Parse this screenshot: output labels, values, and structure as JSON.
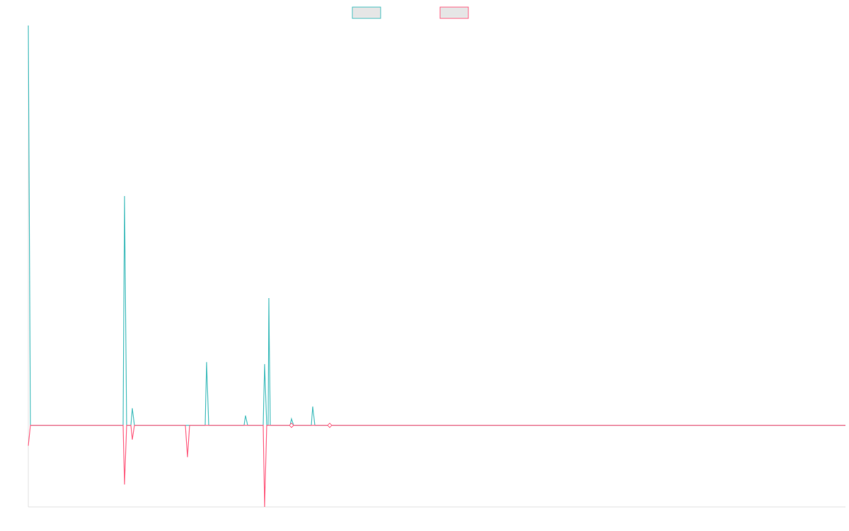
{
  "colors": {
    "series_a": "#4bc0c0",
    "series_b": "#ff6384",
    "legend_fill": "#e6e6e6",
    "axis": "#e0e0e0"
  },
  "chart_data": {
    "type": "line",
    "title": "",
    "xlabel": "",
    "ylabel": "",
    "grid": false,
    "legend_placement": "top-center",
    "x": [
      0,
      1,
      2,
      3,
      4,
      5,
      6,
      7,
      8,
      9,
      10,
      11,
      12,
      13,
      14,
      15,
      16,
      17,
      18,
      19,
      20,
      21,
      22,
      23,
      24,
      25,
      26,
      27,
      28,
      29,
      30,
      31,
      32,
      33,
      34,
      35,
      36,
      37,
      38,
      39,
      40,
      41,
      42,
      43,
      44,
      45,
      46,
      47,
      48,
      49,
      50,
      51,
      52,
      53,
      54,
      55,
      56,
      57,
      58,
      59,
      60,
      61,
      62,
      63,
      64,
      65,
      66,
      67,
      68,
      69,
      70,
      71,
      72,
      73,
      74,
      75,
      76,
      77,
      78,
      79,
      80,
      81,
      82,
      83,
      84,
      85,
      86,
      87,
      88,
      89,
      90,
      91,
      92,
      93,
      94,
      95,
      96,
      97,
      98,
      99,
      100,
      101,
      102,
      103,
      104,
      105,
      106,
      107,
      108,
      109,
      110,
      111,
      112,
      113,
      114,
      115,
      116,
      117,
      118,
      119,
      120,
      121,
      122,
      123,
      124,
      125,
      126,
      127,
      128,
      129,
      130,
      131,
      132,
      133,
      134,
      135,
      136,
      137,
      138,
      139,
      140,
      141,
      142,
      143,
      144,
      145,
      146,
      147,
      148,
      149,
      150,
      151,
      152,
      153,
      154,
      155,
      156,
      157,
      158,
      159,
      160,
      161,
      162,
      163,
      164,
      165,
      166,
      167,
      168,
      169,
      170,
      171,
      172,
      173,
      174,
      175,
      176,
      177,
      178,
      179,
      180,
      181,
      182,
      183,
      184,
      185,
      186,
      187,
      188,
      189,
      190,
      191,
      192,
      193,
      194,
      195,
      196,
      197,
      198,
      199,
      200,
      201,
      202,
      203,
      204,
      205,
      206,
      207,
      208,
      209,
      210,
      211,
      212,
      213,
      214,
      215,
      216,
      217,
      218,
      219,
      220,
      221,
      222,
      223,
      224,
      225,
      226,
      227,
      228,
      229,
      230,
      231,
      232,
      233,
      234,
      235,
      236,
      237,
      238,
      239,
      240,
      241,
      242,
      243,
      244,
      245,
      246,
      247,
      248,
      249,
      250,
      251,
      252,
      253,
      254,
      255,
      256,
      257,
      258,
      259,
      260,
      261,
      262,
      263,
      264,
      265,
      266,
      267,
      268,
      269,
      270,
      271,
      272,
      273,
      274,
      275,
      276,
      277,
      278,
      279,
      280,
      281,
      282,
      283,
      284,
      285,
      286,
      287,
      288,
      289,
      290,
      291,
      292,
      293,
      294,
      295,
      296,
      297,
      298,
      299,
      300,
      301,
      302,
      303,
      304,
      305,
      306,
      307,
      308,
      309,
      310,
      311,
      312,
      313,
      314,
      315,
      316,
      317,
      318,
      319,
      320,
      321,
      322,
      323,
      324,
      325,
      326,
      327,
      328,
      329,
      330,
      331,
      332,
      333,
      334,
      335,
      336,
      337,
      338,
      339,
      340,
      341,
      342,
      343,
      344,
      345,
      346,
      347,
      348,
      349,
      350,
      351,
      352,
      353,
      354,
      355,
      356,
      357,
      358,
      359,
      360,
      361,
      362,
      363,
      364,
      365,
      366,
      367,
      368,
      369,
      370,
      371,
      372,
      373,
      374,
      375,
      376,
      377,
      378,
      379,
      380,
      381,
      382,
      383,
      384,
      385,
      386,
      387,
      388,
      389,
      390,
      391,
      392,
      393,
      394,
      395,
      396,
      397,
      398,
      399,
      400,
      401,
      402,
      403,
      404,
      405,
      406,
      407,
      408,
      409,
      410,
      411,
      412,
      413,
      414,
      415,
      416,
      417,
      418,
      419,
      420,
      421,
      422,
      423,
      424,
      425,
      426,
      427,
      428,
      429,
      430,
      431,
      432,
      433,
      434,
      435,
      436,
      437,
      438,
      439,
      440,
      441,
      442,
      443,
      444,
      445,
      446,
      447,
      448,
      449,
      450,
      451,
      452,
      453,
      454,
      455,
      456,
      457,
      458,
      459,
      460,
      461,
      462,
      463,
      464,
      465,
      466,
      467,
      468,
      469,
      470,
      471,
      472,
      473,
      474,
      475,
      476,
      477,
      478,
      479,
      480,
      481,
      482,
      483,
      484,
      485,
      486,
      487,
      488,
      489,
      490,
      491,
      492,
      493,
      494,
      495,
      496,
      497,
      498,
      499,
      500,
      501,
      502,
      503,
      504,
      505,
      506,
      507,
      508,
      509,
      510,
      511,
      512,
      513,
      514,
      515,
      516,
      517,
      518,
      519,
      520,
      521,
      522,
      523,
      524,
      525,
      526,
      527,
      528,
      529,
      530,
      531,
      532,
      533,
      534,
      535,
      536,
      537,
      538,
      539,
      540,
      541,
      542,
      543,
      544,
      545,
      546,
      547,
      548,
      549,
      550,
      551,
      552,
      553,
      554,
      555,
      556,
      557,
      558,
      559,
      560,
      561,
      562,
      563,
      564,
      565,
      566,
      567,
      568,
      569,
      570,
      571,
      572,
      573,
      574,
      575,
      576,
      577,
      578,
      579,
      580,
      581,
      582,
      583,
      584,
      585,
      586,
      587,
      588,
      589,
      590,
      591,
      592,
      593,
      594,
      595,
      596,
      597,
      598,
      599,
      600,
      601,
      602,
      603,
      604,
      605,
      606,
      607,
      608,
      609,
      610,
      611,
      612,
      613,
      614,
      615,
      616,
      617,
      618,
      619,
      620,
      621,
      622,
      623,
      624,
      625,
      626,
      627,
      628,
      629,
      630,
      631,
      632,
      633,
      634,
      635,
      636,
      637,
      638,
      639,
      640,
      641,
      642,
      643,
      644,
      645,
      646,
      647,
      648,
      649,
      650,
      651,
      652,
      653,
      654,
      655,
      656,
      657,
      658,
      659,
      660,
      661,
      662,
      663,
      664,
      665,
      666,
      667,
      668,
      669,
      670,
      671,
      672,
      673,
      674,
      675,
      676,
      677,
      678,
      679,
      680,
      681,
      682,
      683,
      684,
      685,
      686,
      687,
      688,
      689,
      690,
      691,
      692,
      693,
      694,
      695,
      696,
      697,
      698,
      699,
      700,
      701,
      702,
      703,
      704,
      705,
      706,
      707,
      708,
      709,
      710,
      711,
      712,
      713,
      714,
      715,
      716,
      717,
      718,
      719,
      720,
      721,
      722,
      723,
      724,
      725,
      726,
      727,
      728,
      729,
      730,
      731,
      732,
      733,
      734,
      735,
      736,
      737,
      738,
      739,
      740,
      741,
      742,
      743,
      744,
      745,
      746,
      747,
      748,
      749,
      750,
      751,
      752,
      753,
      754,
      755,
      756,
      757,
      758,
      759,
      760,
      761,
      762,
      763,
      764,
      765,
      766,
      767,
      768,
      769,
      770,
      771,
      772,
      773,
      774,
      775,
      776,
      777,
      778,
      779,
      780,
      781,
      782,
      783,
      784,
      785,
      786,
      787,
      788,
      789,
      790,
      791,
      792,
      793,
      794,
      795,
      796,
      797,
      798,
      799,
      800,
      801,
      802,
      803,
      804,
      805,
      806,
      807,
      808,
      809,
      810,
      811,
      812,
      813,
      814,
      815,
      816,
      817,
      818,
      819,
      820,
      821,
      822,
      823,
      824,
      825,
      826,
      827,
      828,
      829,
      830,
      831,
      832,
      833,
      834,
      835,
      836,
      837,
      838,
      839,
      840,
      841,
      842,
      843,
      844,
      845,
      846,
      847,
      848,
      849,
      850,
      851,
      852,
      853,
      854,
      855,
      856,
      857,
      858,
      859,
      860,
      861,
      862,
      863,
      864,
      865,
      866,
      867,
      868,
      869,
      870,
      871,
      872,
      873,
      874,
      875,
      876,
      877,
      878,
      879,
      880,
      881,
      882,
      883,
      884,
      885,
      886,
      887,
      888,
      889,
      890,
      891,
      892,
      893,
      894,
      895,
      896,
      897,
      898,
      899,
      900,
      901,
      902,
      903,
      904,
      905,
      906,
      907,
      908,
      909,
      910,
      911,
      912,
      913,
      914,
      915,
      916,
      917,
      918,
      919,
      920,
      921,
      922,
      923,
      924,
      925,
      926,
      927,
      928,
      929,
      930,
      931,
      932,
      933,
      934,
      935,
      936,
      937,
      938,
      939,
      940,
      941,
      942,
      943,
      944,
      945,
      946,
      947,
      948,
      949,
      950,
      951,
      952,
      953,
      954,
      955,
      956,
      957,
      958,
      959,
      960,
      961,
      962,
      963,
      964,
      965,
      966,
      967,
      968,
      969,
      970,
      971,
      972,
      973,
      974,
      975,
      976,
      977,
      978,
      979,
      980,
      981,
      982,
      983,
      984,
      985,
      986,
      987,
      988,
      989,
      990,
      991,
      992,
      993,
      994,
      995,
      996,
      997,
      998,
      999,
      1000,
      1001,
      1002,
      1003,
      1004,
      1005,
      1006,
      1007,
      1008,
      1009,
      1010,
      1011,
      1012,
      1013,
      1014,
      1015,
      1016,
      1017,
      1018,
      1019,
      1020,
      1021,
      1022,
      1023,
      1024,
      1025,
      1026,
      1027,
      1028,
      1029,
      1030,
      1031,
      1032,
      1033,
      1034,
      1035,
      1036,
      1037,
      1038,
      1039,
      1040,
      1041,
      1042,
      1043,
      1044,
      1045,
      1046,
      1047,
      1048,
      1049,
      1050,
      1051,
      1052,
      1053,
      1054,
      1055,
      1056,
      1057,
      1058,
      1059,
      1060,
      1061,
      1062,
      1063,
      1064,
      1065,
      1066,
      1067,
      1068,
      1069,
      1070,
      1071,
      1072,
      1073,
      1074,
      1075,
      1076,
      1077,
      1078,
      1079,
      1080,
      1081,
      1082,
      1083,
      1084,
      1085,
      1086,
      1087,
      1088,
      1089,
      1090,
      1091,
      1092,
      1093,
      1094,
      1095,
      1096,
      1097,
      1098,
      1099,
      1100,
      1101,
      1102,
      1103,
      1104,
      1105,
      1106,
      1107,
      1108,
      1109,
      1110,
      1111,
      1112,
      1113,
      1114,
      1115,
      1116,
      1117,
      1118,
      1119,
      1120,
      1121,
      1122,
      1123,
      1124,
      1125,
      1126,
      1127,
      1128,
      1129,
      1130,
      1131,
      1132,
      1133,
      1134,
      1135,
      1136,
      1137,
      1138,
      1139,
      1140,
      1141,
      1142,
      1143,
      1144,
      1145,
      1146,
      1147,
      1148,
      1149,
      1150,
      1151,
      1152,
      1153,
      1154,
      1155
    ],
    "xlim": [
      0,
      1155
    ],
    "ylim": [
      -200,
      980
    ],
    "baseline": 0,
    "series": [
      {
        "color_key": "series_a",
        "points": [
          [
            0,
            980
          ],
          [
            3,
            0
          ],
          [
            134,
            0
          ],
          [
            136,
            562
          ],
          [
            139,
            0
          ],
          [
            145,
            0
          ],
          [
            147,
            42
          ],
          [
            150,
            0
          ],
          [
            250,
            0
          ],
          [
            252,
            155
          ],
          [
            255,
            0
          ],
          [
            305,
            0
          ],
          [
            307,
            24
          ],
          [
            310,
            0
          ],
          [
            332,
            0
          ],
          [
            334,
            150
          ],
          [
            337,
            0
          ],
          [
            339,
            0
          ],
          [
            340,
            312
          ],
          [
            342,
            0
          ],
          [
            370,
            0
          ],
          [
            372,
            16
          ],
          [
            375,
            0
          ],
          [
            400,
            0
          ],
          [
            402,
            46
          ],
          [
            405,
            0
          ],
          [
            1155,
            0
          ]
        ]
      },
      {
        "color_key": "series_b",
        "points": [
          [
            0,
            -50
          ],
          [
            3,
            0
          ],
          [
            134,
            0
          ],
          [
            136,
            -145
          ],
          [
            139,
            0
          ],
          [
            145,
            0
          ],
          [
            147,
            -35
          ],
          [
            150,
            0
          ],
          [
            222,
            0
          ],
          [
            225,
            -78
          ],
          [
            228,
            0
          ],
          [
            332,
            0
          ],
          [
            334,
            -200
          ],
          [
            337,
            0
          ],
          [
            370,
            0
          ],
          [
            372,
            -5
          ],
          [
            375,
            0
          ],
          [
            424,
            0
          ],
          [
            426,
            -5
          ],
          [
            428,
            0
          ],
          [
            1155,
            0
          ]
        ]
      }
    ],
    "markers": [
      {
        "x": 372,
        "y": 0,
        "color_key": "series_b"
      },
      {
        "x": 426,
        "y": 0,
        "color_key": "series_b"
      }
    ],
    "legend": [
      {
        "color_key": "series_a"
      },
      {
        "color_key": "series_b"
      }
    ]
  }
}
